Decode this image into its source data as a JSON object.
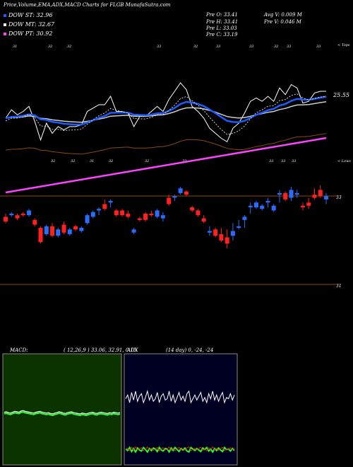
{
  "header": {
    "title": "Price,Volume,EMA,ADX,MACD Charts for FLGB MunafaSutra.com",
    "legend": [
      {
        "label": "DOW ST: 32.96",
        "color": "#1e5cff"
      },
      {
        "label": "DOW MT: 32.67",
        "color": "#ffffff"
      },
      {
        "label": "DOW PT: 30.92",
        "color": "#ff44ff"
      }
    ],
    "ohlc": [
      {
        "left": "Pre  O: 33.41",
        "right": "Avg V: 0.009 M"
      },
      {
        "left": "Pre  H: 33.41",
        "right": "Pre  V: 0.046  M"
      },
      {
        "left": "Pre  L: 33.03",
        "right": ""
      },
      {
        "left": "Pre  C: 33.19",
        "right": ""
      }
    ]
  },
  "labels": {
    "tops_tag": "< Tops",
    "lows_tag": "< Lows",
    "ema_value": "25.55",
    "price_right": "33",
    "lower_right": "31",
    "top_ticks": [
      "31",
      "32",
      "32",
      "33",
      "32",
      "33",
      "33",
      "32",
      "33",
      "33"
    ],
    "low_ticks": [
      "32",
      "32",
      "31",
      "32",
      "32",
      "32",
      "33",
      "33",
      "33"
    ]
  },
  "macd": {
    "label": "MACD:",
    "params": "( 12,26,9 ) 33.06, 32.91, 0.15"
  },
  "adx": {
    "label": "ADX",
    "params": "(14  day) 0, -24, -24"
  },
  "chart_data": {
    "type": "candlestick",
    "series_names": [
      "DOW ST",
      "DOW MT",
      "DOW PT"
    ],
    "candles": [
      [
        30.9,
        31.1,
        30.5,
        30.6
      ],
      [
        31.0,
        31.2,
        30.9,
        31.1
      ],
      [
        31.0,
        31.1,
        30.7,
        30.8
      ],
      [
        31.1,
        31.2,
        30.9,
        31.0
      ],
      [
        31.0,
        31.4,
        30.9,
        31.3
      ],
      [
        30.7,
        30.8,
        30.3,
        30.4
      ],
      [
        30.2,
        30.3,
        29.2,
        29.3
      ],
      [
        29.8,
        30.4,
        29.7,
        30.3
      ],
      [
        30.3,
        30.5,
        29.6,
        29.7
      ],
      [
        29.7,
        30.2,
        29.6,
        30.1
      ],
      [
        30.4,
        30.6,
        29.8,
        29.9
      ],
      [
        29.8,
        30.2,
        29.7,
        30.1
      ],
      [
        30.3,
        30.4,
        30.0,
        30.1
      ],
      [
        30.0,
        30.3,
        29.9,
        30.2
      ],
      [
        30.5,
        31.1,
        30.4,
        31.0
      ],
      [
        30.9,
        31.3,
        30.8,
        31.2
      ],
      [
        31.3,
        31.5,
        31.0,
        31.4
      ],
      [
        31.7,
        32.0,
        31.3,
        31.4
      ],
      [
        31.8,
        32.0,
        31.5,
        31.9
      ],
      [
        31.3,
        31.4,
        30.9,
        31.0
      ],
      [
        31.3,
        31.4,
        30.9,
        31.0
      ],
      [
        31.1,
        31.3,
        30.8,
        30.9
      ],
      [
        29.9,
        30.2,
        29.8,
        30.1
      ],
      [
        30.8,
        30.9,
        30.6,
        30.7
      ],
      [
        31.1,
        31.2,
        30.6,
        30.7
      ],
      [
        31.1,
        31.3,
        30.9,
        31.0
      ],
      [
        30.9,
        31.4,
        30.8,
        31.3
      ],
      [
        30.8,
        31.2,
        30.6,
        31.0
      ],
      [
        32.1,
        32.3,
        31.6,
        31.7
      ],
      [
        32.2,
        32.3,
        31.9,
        32.2
      ],
      [
        32.4,
        32.8,
        32.3,
        32.7
      ],
      [
        32.5,
        32.6,
        32.2,
        32.3
      ],
      [
        31.5,
        31.6,
        31.2,
        31.3
      ],
      [
        31.3,
        31.4,
        30.9,
        31.0
      ],
      [
        30.8,
        31.0,
        30.5,
        30.6
      ],
      [
        29.9,
        30.3,
        29.7,
        30.0
      ],
      [
        30.1,
        30.2,
        29.6,
        29.7
      ],
      [
        29.8,
        30.2,
        29.3,
        29.4
      ],
      [
        29.6,
        30.1,
        28.9,
        29.2
      ],
      [
        29.7,
        30.5,
        29.4,
        30.0
      ],
      [
        30.2,
        30.7,
        30.1,
        30.3
      ],
      [
        30.7,
        31.0,
        30.2,
        30.9
      ],
      [
        31.5,
        31.8,
        31.1,
        31.6
      ],
      [
        31.5,
        31.9,
        31.4,
        31.8
      ],
      [
        31.4,
        31.7,
        31.3,
        31.6
      ],
      [
        31.8,
        32.1,
        31.5,
        31.9
      ],
      [
        31.3,
        31.7,
        31.2,
        31.6
      ],
      [
        32.3,
        32.6,
        31.8,
        32.4
      ],
      [
        32.4,
        32.5,
        31.9,
        32.0
      ],
      [
        32.1,
        32.8,
        31.9,
        32.6
      ],
      [
        32.3,
        32.6,
        32.1,
        32.4
      ],
      [
        31.6,
        31.8,
        31.3,
        31.5
      ],
      [
        31.8,
        32.1,
        31.4,
        31.6
      ],
      [
        32.3,
        32.7,
        32.0,
        32.1
      ],
      [
        32.6,
        32.9,
        32.1,
        32.2
      ],
      [
        32.0,
        32.4,
        31.7,
        32.2
      ]
    ],
    "macd": [
      0.16,
      0.17,
      0.15,
      0.14,
      0.16,
      0.18,
      0.17,
      0.16,
      0.19,
      0.2,
      0.18,
      0.17,
      0.16,
      0.15,
      0.14,
      0.16,
      0.17,
      0.18,
      0.16,
      0.15,
      0.14,
      0.15,
      0.13,
      0.12,
      0.14,
      0.15,
      0.17,
      0.16,
      0.14,
      0.13,
      0.15,
      0.16,
      0.17,
      0.15,
      0.14,
      0.13,
      0.12,
      0.14,
      0.13,
      0.12,
      0.14,
      0.15,
      0.16,
      0.14,
      0.13,
      0.15,
      0.16,
      0.15,
      0.14,
      0.13,
      0.15,
      0.14,
      0.16,
      0.15,
      0.14,
      0.15
    ],
    "adx": [
      24,
      18,
      30,
      14,
      26,
      12,
      28,
      20,
      16,
      30,
      22,
      12,
      26,
      18,
      28,
      24,
      14,
      30,
      20,
      16,
      26,
      24,
      12,
      28,
      18,
      30,
      22,
      14,
      26,
      20,
      28,
      16,
      12,
      30,
      24,
      18,
      26,
      20,
      14,
      28,
      22,
      30,
      16,
      24,
      12,
      26,
      18,
      28,
      20,
      14,
      30,
      22,
      24,
      16,
      26,
      18
    ]
  }
}
